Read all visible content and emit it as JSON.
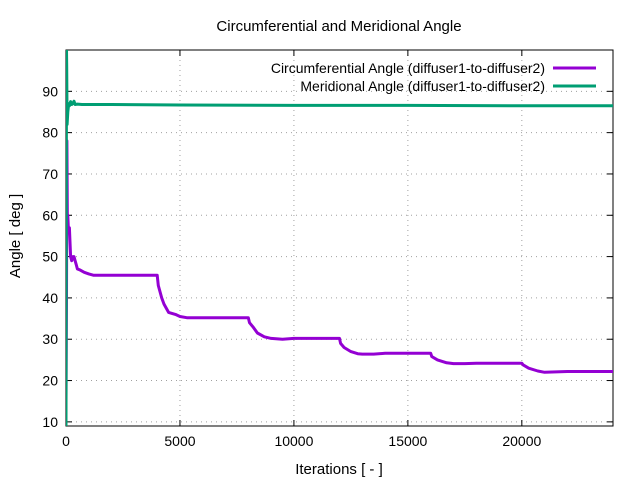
{
  "chart_data": {
    "type": "line",
    "title": "Circumferential and Meridional Angle",
    "xlabel": "Iterations [ - ]",
    "ylabel": "Angle [ deg ]",
    "xlim": [
      0,
      24000
    ],
    "ylim": [
      9,
      100
    ],
    "xticks": [
      0,
      5000,
      10000,
      15000,
      20000
    ],
    "yticks": [
      10,
      20,
      30,
      40,
      50,
      60,
      70,
      80,
      90
    ],
    "grid": true,
    "legend_position": "top-right",
    "series": [
      {
        "name": "Circumferential Angle (diffuser1-to-diffuser2)",
        "color": "#9400d3",
        "x": [
          0,
          20,
          40,
          60,
          80,
          110,
          150,
          200,
          250,
          300,
          350,
          400,
          450,
          500,
          600,
          800,
          1000,
          1200,
          1500,
          2000,
          3000,
          4000,
          4050,
          4200,
          4300,
          4500,
          4800,
          5000,
          5300,
          6000,
          7000,
          8000,
          8050,
          8200,
          8400,
          8700,
          9000,
          9500,
          10000,
          11000,
          12000,
          12050,
          12200,
          12500,
          12800,
          13000,
          13500,
          14000,
          15000,
          16000,
          16050,
          16300,
          16700,
          17000,
          17500,
          18000,
          19000,
          20000,
          20050,
          20300,
          20700,
          21000,
          21500,
          22000,
          23000,
          24000
        ],
        "y": [
          15,
          40,
          78,
          57,
          60,
          56,
          57,
          50,
          49,
          50,
          50,
          49,
          48,
          47,
          46.8,
          46.2,
          45.8,
          45.5,
          45.5,
          45.5,
          45.5,
          45.5,
          43,
          40,
          38.5,
          36.5,
          36,
          35.5,
          35.2,
          35.2,
          35.2,
          35.2,
          34,
          33,
          31.5,
          30.6,
          30.2,
          30,
          30.2,
          30.2,
          30.2,
          29,
          28,
          27,
          26.5,
          26.4,
          26.4,
          26.6,
          26.6,
          26.6,
          25.8,
          25,
          24.3,
          24.1,
          24.1,
          24.2,
          24.2,
          24.2,
          23.8,
          23,
          22.3,
          22,
          22.1,
          22.2,
          22.2,
          22.2
        ]
      },
      {
        "name": "Meridional Angle (diffuser1-to-diffuser2)",
        "color": "#009e73",
        "x": [
          0,
          10,
          20,
          30,
          50,
          80,
          120,
          150,
          200,
          250,
          300,
          350,
          400,
          500,
          700,
          1000,
          2000,
          5000,
          10000,
          15000,
          20000,
          24000
        ],
        "y": [
          9,
          50,
          100,
          96,
          82,
          85,
          87,
          86.5,
          87.5,
          86.8,
          87,
          87.6,
          86.8,
          86.9,
          86.8,
          86.8,
          86.8,
          86.7,
          86.6,
          86.6,
          86.5,
          86.5
        ]
      }
    ]
  }
}
